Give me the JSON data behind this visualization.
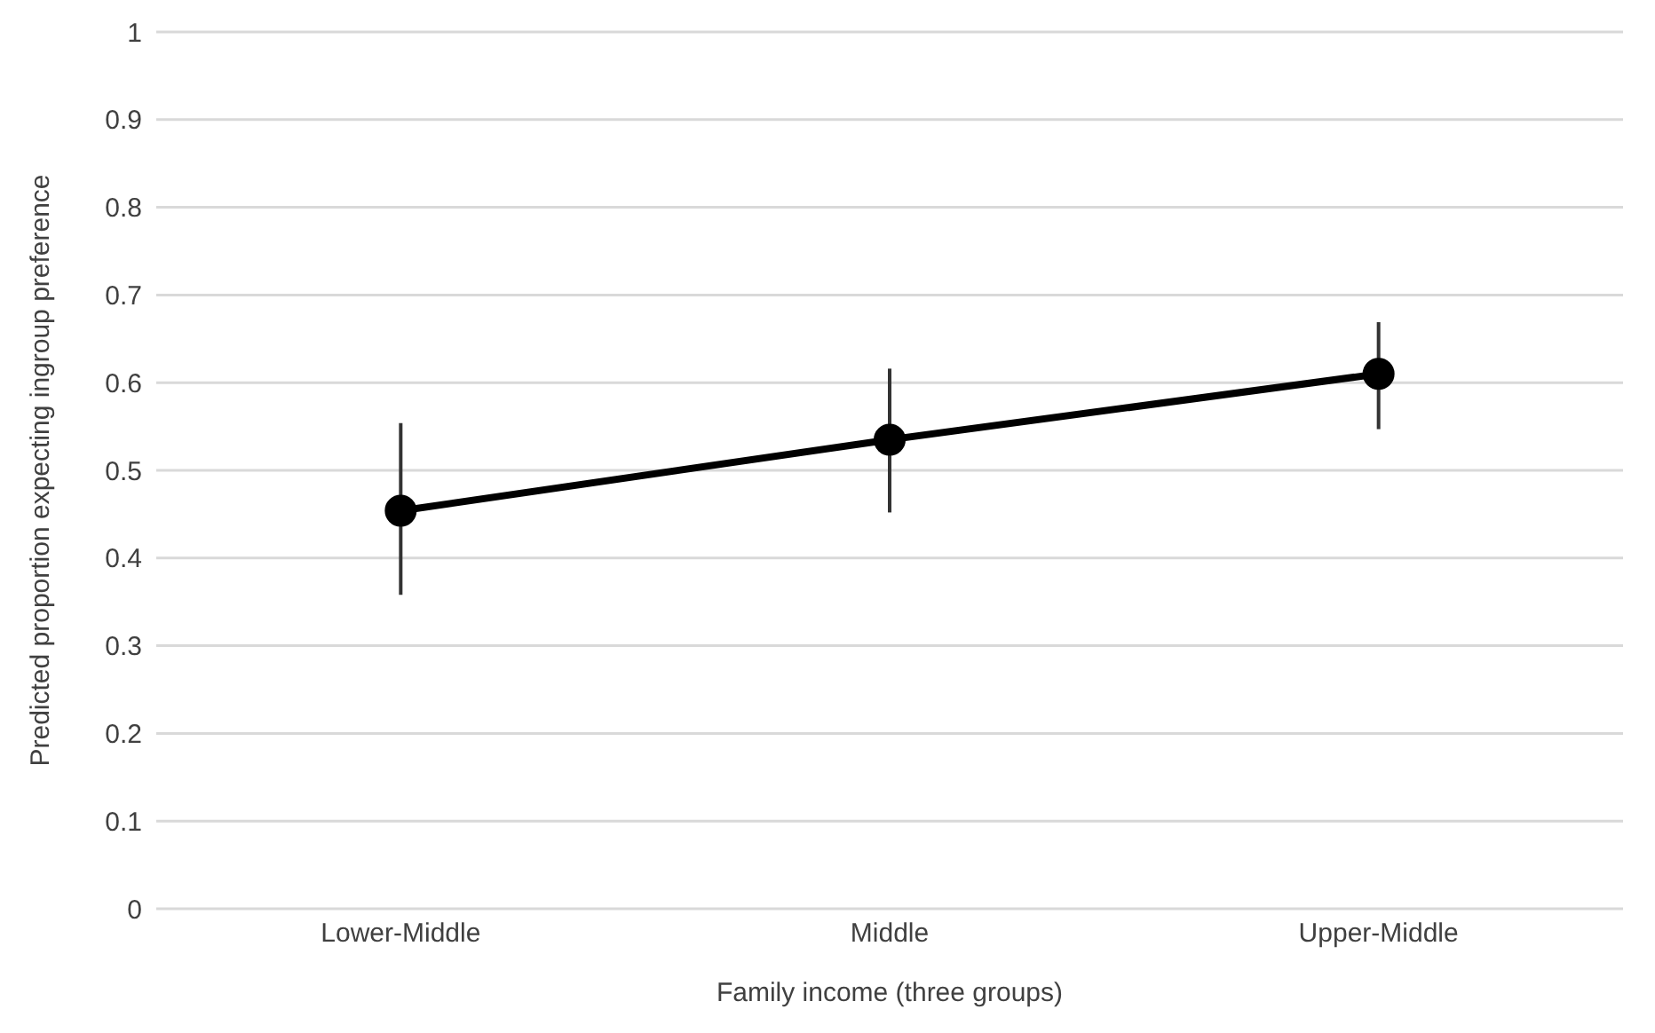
{
  "chart_data": {
    "type": "line",
    "xlabel": "Family income (three groups)",
    "ylabel": "Predicted proportion expecting ingroup preference",
    "categories": [
      "Lower-Middle",
      "Middle",
      "Upper-Middle"
    ],
    "series": [
      {
        "color": "#000000",
        "values": [
          0.454,
          0.535,
          0.61
        ],
        "errors": [
          [
            0.358,
            0.554
          ],
          [
            0.452,
            0.616
          ],
          [
            0.547,
            0.669
          ]
        ]
      }
    ],
    "ylim": [
      0,
      1
    ],
    "yticks": [
      0,
      0.1,
      0.2,
      0.3,
      0.4,
      0.5,
      0.6,
      0.7,
      0.8,
      0.9,
      1
    ],
    "grid": "y",
    "marker": "circle",
    "line_style": "solid"
  }
}
